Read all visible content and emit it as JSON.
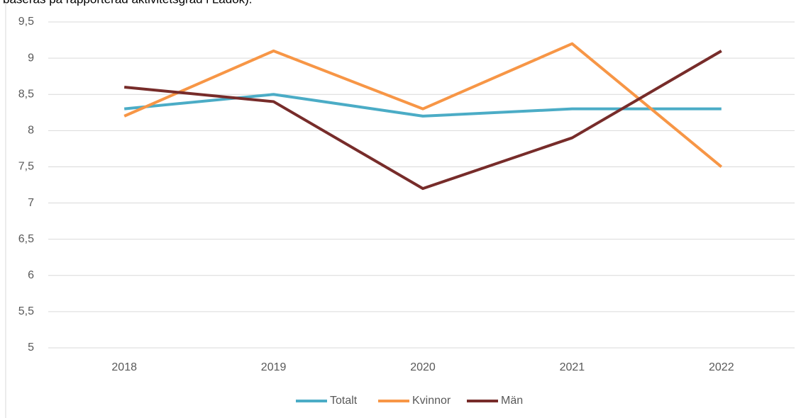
{
  "chart_data": {
    "type": "line",
    "note": "baseras på rapporterad aktivitetsgrad i Ladok).",
    "categories": [
      "2018",
      "2019",
      "2020",
      "2021",
      "2022"
    ],
    "series": [
      {
        "name": "Totalt",
        "color": "#4bacc6",
        "values": [
          8.3,
          8.5,
          8.2,
          8.3,
          8.3
        ]
      },
      {
        "name": "Kvinnor",
        "color": "#f79646",
        "values": [
          8.2,
          9.1,
          8.3,
          9.2,
          7.5
        ]
      },
      {
        "name": "Män",
        "color": "#772c2a",
        "values": [
          8.6,
          8.4,
          7.2,
          7.9,
          9.1
        ]
      }
    ],
    "ylim": [
      5,
      9.5
    ],
    "yticks": [
      {
        "value": 5,
        "label": "5"
      },
      {
        "value": 5.5,
        "label": "5,5"
      },
      {
        "value": 6,
        "label": "6"
      },
      {
        "value": 6.5,
        "label": "6,5"
      },
      {
        "value": 7,
        "label": "7"
      },
      {
        "value": 7.5,
        "label": "7,5"
      },
      {
        "value": 8,
        "label": "8"
      },
      {
        "value": 8.5,
        "label": "8,5"
      },
      {
        "value": 9,
        "label": "9"
      },
      {
        "value": 9.5,
        "label": "9,5"
      }
    ],
    "grid": true,
    "legend": "bottom"
  }
}
